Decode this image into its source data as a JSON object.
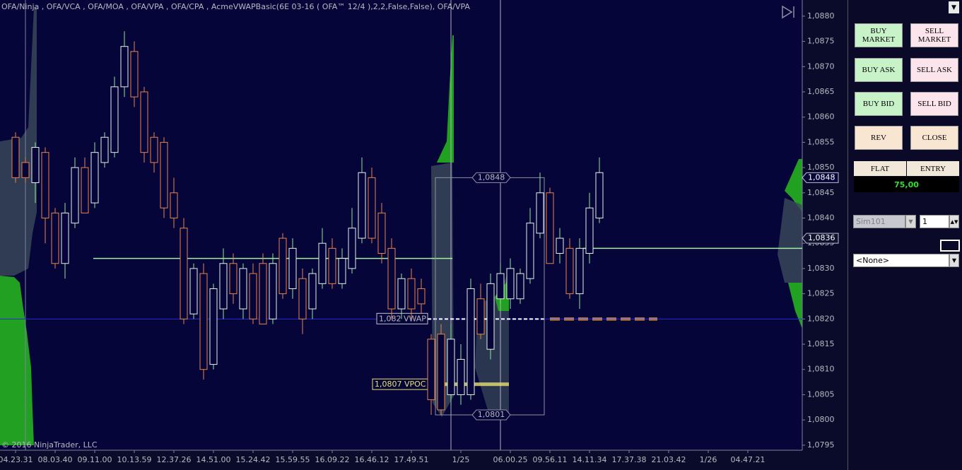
{
  "chart_data": {
    "type": "candlestick",
    "title": "OFA/Ninja , OFA/VCA , OFA/MOA , OFA/VPA , OFA/CPA , AcmeVWAPBasic(6E 03-16 ( OFA™ 12/4 ),2,2,False,False), OFA/VPA",
    "copyright": "© 2016 NinjaTrader, LLC",
    "up_color": "#e8f0e8",
    "down_color": "#e8834a",
    "categories": [
      "04.23.31",
      null,
      null,
      null,
      "08.03.40",
      null,
      null,
      null,
      "09.11.00",
      null,
      null,
      null,
      "10.13.59",
      null,
      null,
      null,
      "12.37.26",
      null,
      null,
      null,
      "14.51.00",
      null,
      null,
      null,
      "15.24.42",
      null,
      null,
      null,
      "15.59.55",
      null,
      null,
      null,
      "16.09.22",
      null,
      null,
      null,
      "16.46.12",
      null,
      null,
      null,
      "17.49.51",
      null,
      null,
      null,
      null,
      "1/25",
      null,
      null,
      null,
      null,
      "06.00.25",
      null,
      null,
      null,
      "09.56.11",
      null,
      null,
      null,
      "14.11.34",
      null,
      null,
      null,
      "17.37.38",
      null,
      null,
      null,
      "21.03.42",
      null,
      null,
      null,
      "1/26",
      null,
      null,
      null,
      "04.47.21"
    ],
    "open": [
      1.0856,
      1.0851,
      1.0847,
      1.0853,
      1.0841,
      1.0831,
      1.0839,
      1.085,
      1.0843,
      1.0851,
      1.0853,
      1.0866,
      1.0873,
      1.0865,
      1.0856,
      1.0855,
      1.0845,
      1.0838,
      1.0821,
      1.0829,
      1.0811,
      1.0822,
      1.0831,
      1.0822,
      1.0829,
      1.0831,
      1.082,
      1.0836,
      1.0826,
      1.0828,
      1.0822,
      1.0827,
      1.0834,
      1.0827,
      1.083,
      1.0836,
      1.0848,
      1.0841,
      1.0834,
      1.0822,
      1.0828,
      1.0826,
      1.0816,
      1.0817,
      1.0805,
      1.0805,
      1.0805,
      1.0824,
      1.0814,
      1.0824,
      1.0824,
      1.0824,
      1.0828,
      1.0837,
      1.0845,
      1.0833,
      1.0834,
      1.0825,
      1.0833,
      1.084,
      null,
      null,
      null,
      null,
      null,
      null,
      null,
      null,
      null,
      null,
      null,
      null,
      null,
      null,
      null
    ],
    "high": [
      1.0857,
      1.0852,
      1.0855,
      1.0854,
      1.0842,
      1.0843,
      1.0852,
      1.0852,
      1.0855,
      1.0857,
      1.0868,
      1.0877,
      1.0875,
      1.0866,
      1.0857,
      1.0856,
      1.0848,
      1.084,
      1.0831,
      1.0831,
      1.0827,
      1.0834,
      1.0833,
      1.0831,
      1.0831,
      1.0833,
      1.0833,
      1.0837,
      1.0836,
      1.083,
      1.083,
      1.0838,
      1.0836,
      1.0834,
      1.0842,
      1.0852,
      1.085,
      1.0843,
      1.0836,
      1.0829,
      1.083,
      1.0828,
      1.0817,
      1.0819,
      1.0819,
      1.0815,
      1.0828,
      1.0827,
      1.0829,
      1.0831,
      1.0832,
      1.083,
      1.0842,
      1.0849,
      1.0846,
      1.0838,
      1.0836,
      1.0836,
      1.0845,
      1.0852,
      null,
      null,
      null,
      null,
      null,
      null,
      null,
      null,
      null,
      null,
      null,
      null,
      null,
      null,
      null
    ],
    "low": [
      1.0847,
      1.0847,
      1.0843,
      1.0835,
      1.083,
      1.0828,
      1.0838,
      1.0841,
      1.0842,
      1.085,
      1.0852,
      1.0864,
      1.0862,
      1.0851,
      1.0849,
      1.084,
      1.0838,
      1.0819,
      1.082,
      1.0808,
      1.081,
      1.082,
      1.0823,
      1.082,
      1.0819,
      1.0819,
      1.0819,
      1.0824,
      1.0824,
      1.0817,
      1.082,
      1.0826,
      1.0826,
      1.0826,
      1.0829,
      1.0835,
      1.0835,
      1.0831,
      1.082,
      1.082,
      1.082,
      1.0821,
      1.0801,
      1.0801,
      1.0803,
      1.0803,
      1.0804,
      1.0816,
      1.0812,
      1.0823,
      1.0822,
      1.0823,
      1.0827,
      1.0836,
      1.0831,
      1.0831,
      1.0824,
      1.0822,
      1.0831,
      1.0839,
      null,
      null,
      null,
      null,
      null,
      null,
      null,
      null,
      null,
      null,
      null,
      null,
      null,
      null,
      null
    ],
    "close": [
      1.0848,
      1.0848,
      1.0854,
      1.084,
      1.0831,
      1.0841,
      1.085,
      1.0841,
      1.0853,
      1.0856,
      1.0866,
      1.0874,
      1.0864,
      1.0853,
      1.0851,
      1.0842,
      1.084,
      1.082,
      1.083,
      1.081,
      1.0826,
      1.0831,
      1.0825,
      1.083,
      1.082,
      1.0819,
      1.0831,
      1.0825,
      1.0834,
      1.082,
      1.0829,
      1.0835,
      1.0827,
      1.0832,
      1.0838,
      1.0849,
      1.0836,
      1.0833,
      1.0822,
      1.0828,
      1.0822,
      1.0823,
      1.0804,
      1.0802,
      1.0816,
      1.0812,
      1.0826,
      1.0817,
      1.0827,
      1.0829,
      1.083,
      1.0829,
      1.0839,
      1.0845,
      1.0831,
      1.0836,
      1.0825,
      1.0834,
      1.0842,
      1.0849,
      null,
      null,
      null,
      null,
      null,
      null,
      null,
      null,
      null,
      null,
      null,
      null,
      null,
      null,
      null
    ],
    "ylim": [
      1.0794,
      1.08832
    ],
    "yticks": [
      {
        "value": 1.0795,
        "label": "1,0795"
      },
      {
        "value": 1.08,
        "label": "1,0800"
      },
      {
        "value": 1.0805,
        "label": "1,0805"
      },
      {
        "value": 1.081,
        "label": "1,0810"
      },
      {
        "value": 1.0815,
        "label": "1,0815"
      },
      {
        "value": 1.082,
        "label": "1,0820"
      },
      {
        "value": 1.0825,
        "label": "1,0825"
      },
      {
        "value": 1.083,
        "label": "1,0830"
      },
      {
        "value": 1.0835,
        "label": "1,0835"
      },
      {
        "value": 1.084,
        "label": "1,0840"
      },
      {
        "value": 1.0845,
        "label": "1,0845"
      },
      {
        "value": 1.085,
        "label": "1,0850"
      },
      {
        "value": 1.0855,
        "label": "1,0855"
      },
      {
        "value": 1.086,
        "label": "1,0860"
      },
      {
        "value": 1.0865,
        "label": "1,0865"
      },
      {
        "value": 1.087,
        "label": "1,0870"
      },
      {
        "value": 1.0875,
        "label": "1,0875"
      },
      {
        "value": 1.088,
        "label": "1,0880"
      }
    ],
    "vwap": {
      "value": 1.082,
      "label": "1,082 VWAP",
      "color": "#2a2ad0"
    },
    "vpoc": {
      "value": 1.0807,
      "label": "1,0807 VPOC",
      "color": "#e8e070"
    },
    "range_box": {
      "high": {
        "value": 1.0848,
        "label": "1,0848"
      },
      "low": {
        "value": 1.0801,
        "label": "1,0801"
      }
    },
    "price_markers": [
      {
        "value": 1.0848,
        "label": "1,0848"
      },
      {
        "value": 1.0836,
        "label": "1,0836"
      }
    ],
    "reference_lines": [
      {
        "value": 1.0832,
        "color": "#a0f0a0"
      },
      {
        "value": 1.0834,
        "color": "#a0f0a0"
      },
      {
        "value": 1.082,
        "color": "#e8a040"
      }
    ]
  },
  "order_panel": {
    "buttons": [
      "BUY MARKET",
      "SELL MARKET",
      "BUY ASK",
      "SELL ASK",
      "BUY BID",
      "SELL BID",
      "REV",
      "CLOSE"
    ],
    "position": {
      "status": "FLAT",
      "entry": "ENTRY"
    },
    "pnl": "75,00",
    "account": "Sim101",
    "quantity": 1,
    "strategy": "<None>"
  }
}
